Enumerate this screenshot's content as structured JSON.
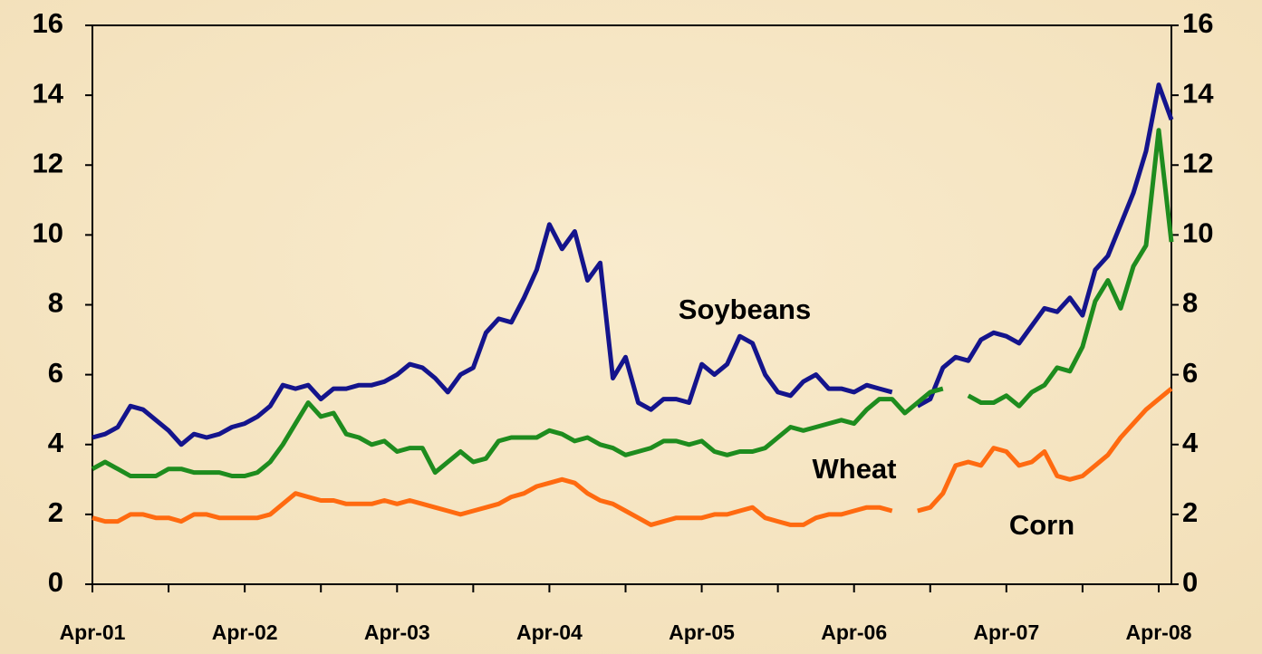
{
  "chart_data": {
    "type": "line",
    "x": [
      0,
      1,
      2,
      3,
      4,
      5,
      6,
      7,
      8,
      9,
      10,
      11,
      12,
      13,
      14,
      15,
      16,
      17,
      18,
      19,
      20,
      21,
      22,
      23,
      24,
      25,
      26,
      27,
      28,
      29,
      30,
      31,
      32,
      33,
      34,
      35,
      36,
      37,
      38,
      39,
      40,
      41,
      42,
      43,
      44,
      45,
      46,
      47,
      48,
      49,
      50,
      51,
      52,
      53,
      54,
      55,
      56,
      57,
      58,
      59,
      60,
      61,
      62,
      63,
      64,
      65,
      66,
      67,
      68,
      69,
      70,
      71,
      72,
      73,
      74,
      75,
      76,
      77,
      78,
      79,
      80,
      81,
      82,
      83,
      84,
      85
    ],
    "series": [
      {
        "name": "Soybeans",
        "color": "#14148c",
        "values": [
          4.2,
          4.3,
          4.5,
          5.1,
          5.0,
          4.7,
          4.4,
          4.0,
          4.3,
          4.2,
          4.3,
          4.5,
          4.6,
          4.8,
          5.1,
          5.7,
          5.6,
          5.7,
          5.3,
          5.6,
          5.6,
          5.7,
          5.7,
          5.8,
          6.0,
          6.3,
          6.2,
          5.9,
          5.5,
          6.0,
          6.2,
          7.2,
          7.6,
          7.5,
          8.2,
          9.0,
          10.3,
          9.6,
          10.1,
          8.7,
          9.2,
          5.9,
          6.5,
          5.2,
          5.0,
          5.3,
          5.3,
          5.2,
          6.3,
          6.0,
          6.3,
          7.1,
          6.9,
          6.0,
          5.5,
          5.4,
          5.8,
          6.0,
          5.6,
          5.6,
          5.5,
          5.7,
          5.6,
          5.5,
          null,
          5.1,
          5.3,
          6.2,
          6.5,
          6.4,
          7.0,
          7.2,
          7.1,
          6.9,
          7.4,
          7.9,
          7.8,
          8.2,
          7.7,
          9.0,
          9.4,
          10.3,
          11.2,
          12.4,
          14.3,
          13.3
        ]
      },
      {
        "name": "Wheat",
        "color": "#1e8c1e",
        "values": [
          3.3,
          3.5,
          3.3,
          3.1,
          3.1,
          3.1,
          3.3,
          3.3,
          3.2,
          3.2,
          3.2,
          3.1,
          3.1,
          3.2,
          3.5,
          4.0,
          4.6,
          5.2,
          4.8,
          4.9,
          4.3,
          4.2,
          4.0,
          4.1,
          3.8,
          3.9,
          3.9,
          3.2,
          3.5,
          3.8,
          3.5,
          3.6,
          4.1,
          4.2,
          4.2,
          4.2,
          4.4,
          4.3,
          4.1,
          4.2,
          4.0,
          3.9,
          3.7,
          3.8,
          3.9,
          4.1,
          4.1,
          4.0,
          4.1,
          3.8,
          3.7,
          3.8,
          3.8,
          3.9,
          4.2,
          4.5,
          4.4,
          4.5,
          4.6,
          4.7,
          4.6,
          5.0,
          5.3,
          5.3,
          4.9,
          5.2,
          5.5,
          5.6,
          null,
          5.4,
          5.2,
          5.2,
          5.4,
          5.1,
          5.5,
          5.7,
          6.2,
          6.1,
          6.8,
          8.1,
          8.7,
          7.9,
          9.1,
          9.7,
          13.0,
          9.8
        ]
      },
      {
        "name": "Corn",
        "color": "#ff6a10",
        "values": [
          1.9,
          1.8,
          1.8,
          2.0,
          2.0,
          1.9,
          1.9,
          1.8,
          2.0,
          2.0,
          1.9,
          1.9,
          1.9,
          1.9,
          2.0,
          2.3,
          2.6,
          2.5,
          2.4,
          2.4,
          2.3,
          2.3,
          2.3,
          2.4,
          2.3,
          2.4,
          2.3,
          2.2,
          2.1,
          2.0,
          2.1,
          2.2,
          2.3,
          2.5,
          2.6,
          2.8,
          2.9,
          3.0,
          2.9,
          2.6,
          2.4,
          2.3,
          2.1,
          1.9,
          1.7,
          1.8,
          1.9,
          1.9,
          1.9,
          2.0,
          2.0,
          2.1,
          2.2,
          1.9,
          1.8,
          1.7,
          1.7,
          1.9,
          2.0,
          2.0,
          2.1,
          2.2,
          2.2,
          2.1,
          null,
          2.1,
          2.2,
          2.6,
          3.4,
          3.5,
          3.4,
          3.9,
          3.8,
          3.4,
          3.5,
          3.8,
          3.1,
          3.0,
          3.1,
          3.4,
          3.7,
          4.2,
          4.6,
          5.0,
          5.3,
          5.6
        ]
      }
    ],
    "xlim": [
      0,
      85
    ],
    "xticks": [
      {
        "value": 0,
        "label": "Apr-01"
      },
      {
        "value": 12,
        "label": "Apr-02"
      },
      {
        "value": 24,
        "label": "Apr-03"
      },
      {
        "value": 36,
        "label": "Apr-04"
      },
      {
        "value": 48,
        "label": "Apr-05"
      },
      {
        "value": 60,
        "label": "Apr-06"
      },
      {
        "value": 72,
        "label": "Apr-07"
      },
      {
        "value": 84,
        "label": "Apr-08"
      }
    ],
    "xminorticks": [
      6,
      18,
      30,
      42,
      54,
      66,
      78
    ],
    "ylim": [
      0,
      16
    ],
    "yticks": [
      0,
      2,
      4,
      6,
      8,
      10,
      12,
      14,
      16
    ],
    "y2lim": [
      0,
      16
    ],
    "y2ticks": [
      0,
      2,
      4,
      6,
      8,
      10,
      12,
      14,
      16
    ],
    "annotations": [
      "Soybeans",
      "Wheat",
      "Corn"
    ]
  }
}
